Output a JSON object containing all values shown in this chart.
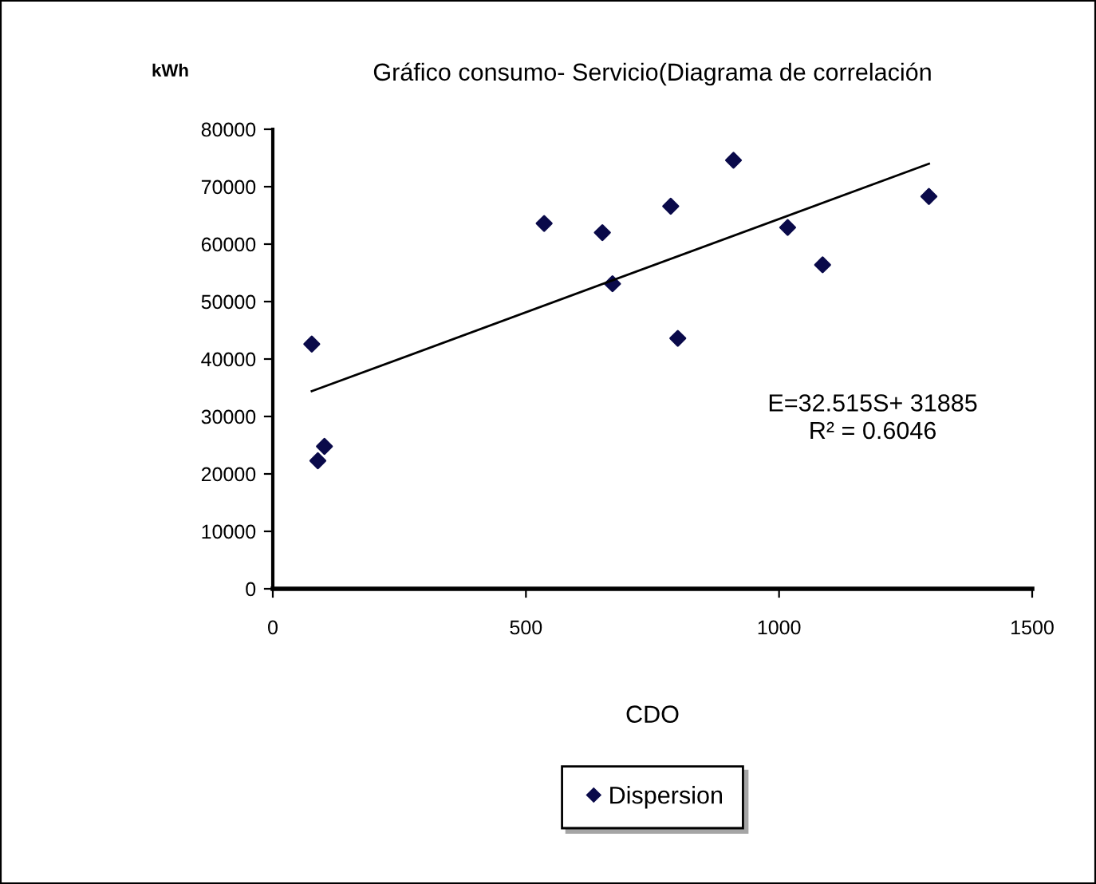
{
  "chart_data": {
    "type": "scatter",
    "title": "Gráfico consumo- Servicio(Diagrama de correlación",
    "xlabel": "CDO",
    "ylabel": "kWh",
    "xlim": [
      0,
      1500
    ],
    "xticks": [
      0,
      500,
      1000,
      1500
    ],
    "ylim": [
      0,
      80000
    ],
    "yticks": [
      0,
      10000,
      20000,
      30000,
      40000,
      50000,
      60000,
      70000,
      80000
    ],
    "grid": false,
    "legend": "bottom",
    "annotations": [
      "E=32.515S+ 31885",
      "R² = 0.6046"
    ],
    "series": [
      {
        "name": "Dispersion",
        "marker": "diamond",
        "color": "#0a0a4a",
        "x": [
          77,
          89,
          102,
          536,
          651,
          671,
          786,
          800,
          910,
          1017,
          1086,
          1296
        ],
        "values": [
          42600,
          22300,
          24800,
          63600,
          62000,
          53100,
          66600,
          43600,
          74600,
          62900,
          56400,
          68300
        ]
      },
      {
        "type": "line",
        "color": "#000000",
        "line_style": "solid",
        "x": [
          77,
          1296
        ],
        "values": [
          34400,
          74000
        ]
      }
    ]
  }
}
